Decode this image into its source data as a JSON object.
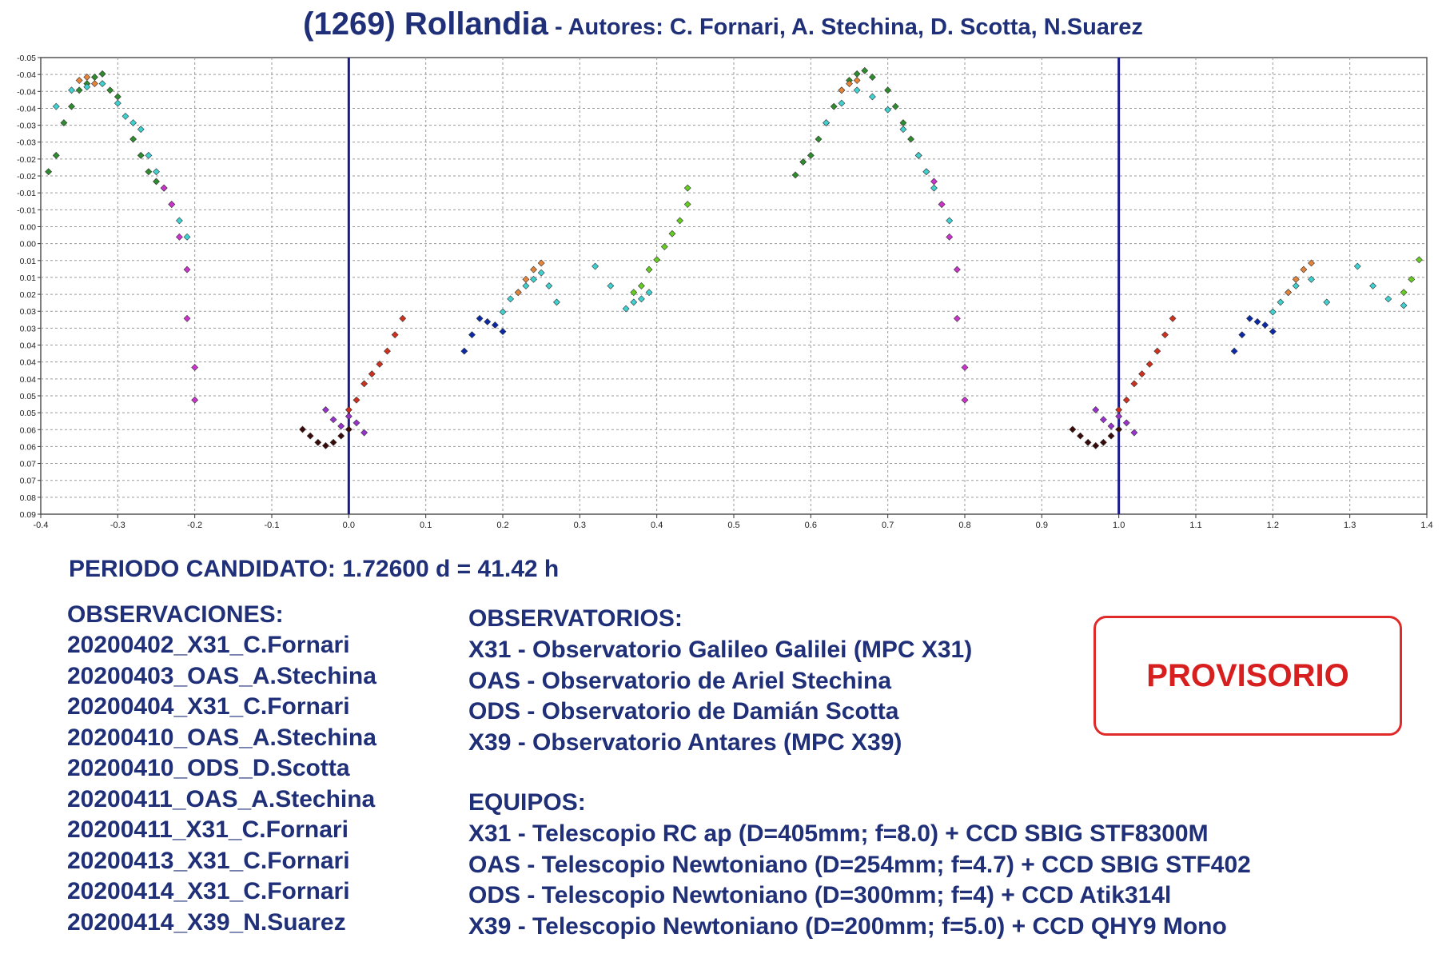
{
  "header": {
    "title": "(1269) Rollandia",
    "subtitle": " - Autores: C. Fornari, A. Stechina, D. Scotta, N.Suarez"
  },
  "chart_data": {
    "type": "scatter",
    "xlim": [
      -0.4,
      1.4
    ],
    "ylim": [
      -0.05,
      0.09
    ],
    "y_inverted": true,
    "grid": true,
    "xticks": [
      "-0.4",
      "-0.3",
      "-0.2",
      "-0.1",
      "0.0",
      "0.1",
      "0.2",
      "0.3",
      "0.4",
      "0.5",
      "0.6",
      "0.7",
      "0.8",
      "0.9",
      "1.0",
      "1.1",
      "1.2",
      "1.3",
      "1.4"
    ],
    "yticks": [
      "-0.05",
      "-0.04",
      "-0.04",
      "-0.04",
      "-0.03",
      "-0.03",
      "-0.02",
      "-0.02",
      "-0.01",
      "-0.01",
      "0.00",
      "0.00",
      "0.01",
      "0.01",
      "0.02",
      "0.03",
      "0.03",
      "0.04",
      "0.04",
      "0.04",
      "0.05",
      "0.05",
      "0.06",
      "0.06",
      "0.07",
      "0.07",
      "0.08",
      "0.09"
    ],
    "reference_lines_x": [
      0.0,
      1.0
    ],
    "reference_line_color": "#1a1a8a",
    "series": [
      {
        "color": "#2e8b2e",
        "points": [
          [
            -0.39,
            -0.015
          ],
          [
            -0.38,
            -0.02
          ],
          [
            -0.37,
            -0.03
          ],
          [
            -0.36,
            -0.035
          ],
          [
            -0.35,
            -0.04
          ],
          [
            -0.34,
            -0.042
          ],
          [
            -0.33,
            -0.044
          ],
          [
            -0.32,
            -0.045
          ],
          [
            -0.31,
            -0.04
          ],
          [
            -0.3,
            -0.038
          ],
          [
            -0.28,
            -0.025
          ],
          [
            -0.27,
            -0.02
          ],
          [
            -0.26,
            -0.015
          ],
          [
            -0.25,
            -0.012
          ],
          [
            0.58,
            -0.014
          ],
          [
            0.59,
            -0.018
          ],
          [
            0.6,
            -0.02
          ],
          [
            0.61,
            -0.025
          ],
          [
            0.62,
            -0.03
          ],
          [
            0.63,
            -0.035
          ],
          [
            0.64,
            -0.04
          ],
          [
            0.65,
            -0.043
          ],
          [
            0.66,
            -0.045
          ],
          [
            0.67,
            -0.046
          ],
          [
            0.68,
            -0.044
          ],
          [
            0.7,
            -0.04
          ],
          [
            0.71,
            -0.035
          ],
          [
            0.72,
            -0.03
          ],
          [
            0.73,
            -0.025
          ],
          [
            0.74,
            -0.02
          ],
          [
            0.75,
            -0.015
          ]
        ]
      },
      {
        "color": "#3fd0d0",
        "points": [
          [
            -0.38,
            -0.035
          ],
          [
            -0.36,
            -0.04
          ],
          [
            -0.34,
            -0.041
          ],
          [
            -0.32,
            -0.042
          ],
          [
            -0.3,
            -0.036
          ],
          [
            -0.29,
            -0.032
          ],
          [
            -0.28,
            -0.03
          ],
          [
            -0.27,
            -0.028
          ],
          [
            -0.26,
            -0.02
          ],
          [
            -0.25,
            -0.015
          ],
          [
            -0.24,
            -0.01
          ],
          [
            -0.23,
            -0.005
          ],
          [
            -0.22,
            0.0
          ],
          [
            -0.21,
            0.005
          ],
          [
            0.2,
            0.028
          ],
          [
            0.21,
            0.024
          ],
          [
            0.22,
            0.022
          ],
          [
            0.23,
            0.02
          ],
          [
            0.24,
            0.018
          ],
          [
            0.25,
            0.016
          ],
          [
            0.26,
            0.02
          ],
          [
            0.27,
            0.025
          ],
          [
            0.32,
            0.014
          ],
          [
            0.34,
            0.02
          ],
          [
            0.36,
            0.027
          ],
          [
            0.37,
            0.025
          ],
          [
            0.38,
            0.024
          ],
          [
            0.39,
            0.022
          ],
          [
            0.62,
            -0.03
          ],
          [
            0.64,
            -0.036
          ],
          [
            0.66,
            -0.04
          ],
          [
            0.68,
            -0.038
          ],
          [
            0.7,
            -0.034
          ],
          [
            0.72,
            -0.028
          ],
          [
            0.74,
            -0.02
          ],
          [
            0.75,
            -0.015
          ],
          [
            0.76,
            -0.01
          ],
          [
            0.77,
            -0.005
          ],
          [
            0.78,
            0.0
          ],
          [
            1.2,
            0.028
          ],
          [
            1.21,
            0.025
          ],
          [
            1.22,
            0.022
          ],
          [
            1.23,
            0.02
          ],
          [
            1.25,
            0.018
          ],
          [
            1.27,
            0.025
          ],
          [
            1.31,
            0.014
          ],
          [
            1.33,
            0.02
          ],
          [
            1.35,
            0.024
          ],
          [
            1.37,
            0.026
          ]
        ]
      },
      {
        "color": "#e4843a",
        "points": [
          [
            -0.35,
            -0.043
          ],
          [
            -0.34,
            -0.044
          ],
          [
            -0.33,
            -0.042
          ],
          [
            0.22,
            0.022
          ],
          [
            0.23,
            0.018
          ],
          [
            0.24,
            0.015
          ],
          [
            0.25,
            0.013
          ],
          [
            0.64,
            -0.04
          ],
          [
            0.65,
            -0.042
          ],
          [
            0.66,
            -0.043
          ],
          [
            1.22,
            0.022
          ],
          [
            1.23,
            0.018
          ],
          [
            1.24,
            0.015
          ],
          [
            1.25,
            0.013
          ]
        ]
      },
      {
        "color": "#cc33cc",
        "points": [
          [
            -0.24,
            -0.01
          ],
          [
            -0.23,
            -0.005
          ],
          [
            -0.22,
            0.005
          ],
          [
            -0.21,
            0.015
          ],
          [
            -0.21,
            0.03
          ],
          [
            -0.2,
            0.045
          ],
          [
            -0.2,
            0.055
          ],
          [
            0.76,
            -0.012
          ],
          [
            0.77,
            -0.005
          ],
          [
            0.78,
            0.005
          ],
          [
            0.79,
            0.015
          ],
          [
            0.79,
            0.03
          ],
          [
            0.8,
            0.045
          ],
          [
            0.8,
            0.055
          ]
        ]
      },
      {
        "color": "#66cc22",
        "points": [
          [
            0.37,
            0.022
          ],
          [
            0.38,
            0.02
          ],
          [
            0.39,
            0.015
          ],
          [
            0.4,
            0.012
          ],
          [
            0.41,
            0.008
          ],
          [
            0.42,
            0.004
          ],
          [
            0.43,
            0.0
          ],
          [
            0.44,
            -0.005
          ],
          [
            0.44,
            -0.01
          ],
          [
            1.37,
            0.022
          ],
          [
            1.38,
            0.018
          ],
          [
            1.39,
            0.012
          ]
        ]
      },
      {
        "color": "#0a2aa8",
        "points": [
          [
            0.15,
            0.04
          ],
          [
            0.16,
            0.035
          ],
          [
            0.17,
            0.03
          ],
          [
            0.18,
            0.031
          ],
          [
            0.19,
            0.032
          ],
          [
            0.2,
            0.034
          ],
          [
            1.15,
            0.04
          ],
          [
            1.16,
            0.035
          ],
          [
            1.17,
            0.03
          ],
          [
            1.18,
            0.031
          ],
          [
            1.19,
            0.032
          ],
          [
            1.2,
            0.034
          ]
        ]
      },
      {
        "color": "#3a0a0a",
        "points": [
          [
            -0.06,
            0.064
          ],
          [
            -0.05,
            0.066
          ],
          [
            -0.04,
            0.068
          ],
          [
            -0.03,
            0.069
          ],
          [
            -0.02,
            0.068
          ],
          [
            -0.01,
            0.066
          ],
          [
            0.0,
            0.064
          ],
          [
            0.94,
            0.064
          ],
          [
            0.95,
            0.066
          ],
          [
            0.96,
            0.068
          ],
          [
            0.97,
            0.069
          ],
          [
            0.98,
            0.068
          ],
          [
            0.99,
            0.066
          ],
          [
            1.0,
            0.064
          ]
        ]
      },
      {
        "color": "#9933cc",
        "points": [
          [
            -0.03,
            0.058
          ],
          [
            -0.02,
            0.061
          ],
          [
            -0.01,
            0.063
          ],
          [
            0.0,
            0.06
          ],
          [
            0.01,
            0.062
          ],
          [
            0.02,
            0.065
          ],
          [
            0.97,
            0.058
          ],
          [
            0.98,
            0.061
          ],
          [
            0.99,
            0.063
          ],
          [
            1.0,
            0.06
          ],
          [
            1.01,
            0.062
          ],
          [
            1.02,
            0.065
          ]
        ]
      },
      {
        "color": "#d0301e",
        "points": [
          [
            0.0,
            0.058
          ],
          [
            0.01,
            0.055
          ],
          [
            0.02,
            0.05
          ],
          [
            0.03,
            0.047
          ],
          [
            0.04,
            0.044
          ],
          [
            0.05,
            0.04
          ],
          [
            0.06,
            0.035
          ],
          [
            0.07,
            0.03
          ],
          [
            1.0,
            0.058
          ],
          [
            1.01,
            0.055
          ],
          [
            1.02,
            0.05
          ],
          [
            1.03,
            0.047
          ],
          [
            1.04,
            0.044
          ],
          [
            1.05,
            0.04
          ],
          [
            1.06,
            0.035
          ],
          [
            1.07,
            0.03
          ]
        ]
      }
    ]
  },
  "info": {
    "period": "PERIODO CANDIDATO: 1.72600 d = 41.42 h",
    "observations_header": "OBSERVACIONES:",
    "observations": [
      "20200402_X31_C.Fornari",
      "20200403_OAS_A.Stechina",
      "20200404_X31_C.Fornari",
      "20200410_OAS_A.Stechina",
      "20200410_ODS_D.Scotta",
      "20200411_OAS_A.Stechina",
      "20200411_X31_C.Fornari",
      "20200413_X31_C.Fornari",
      "20200414_X31_C.Fornari",
      "20200414_X39_N.Suarez"
    ],
    "observatories_header": "OBSERVATORIOS:",
    "observatories": [
      "X31 - Observatorio Galileo Galilei (MPC X31)",
      "OAS - Observatorio de Ariel Stechina",
      "ODS - Observatorio de Damián Scotta",
      "X39 - Observatorio Antares (MPC X39)"
    ],
    "equipment_header": "EQUIPOS:",
    "equipment": [
      "X31 - Telescopio RC ap (D=405mm; f=8.0) + CCD SBIG STF8300M",
      "OAS - Telescopio Newtoniano (D=254mm; f=4.7) + CCD SBIG STF402",
      "ODS - Telescopio Newtoniano (D=300mm; f=4) + CCD Atik314l",
      "X39 - Telescopio Newtoniano (D=200mm; f=5.0) + CCD QHY9 Mono"
    ],
    "stamp": "PROVISORIO"
  }
}
